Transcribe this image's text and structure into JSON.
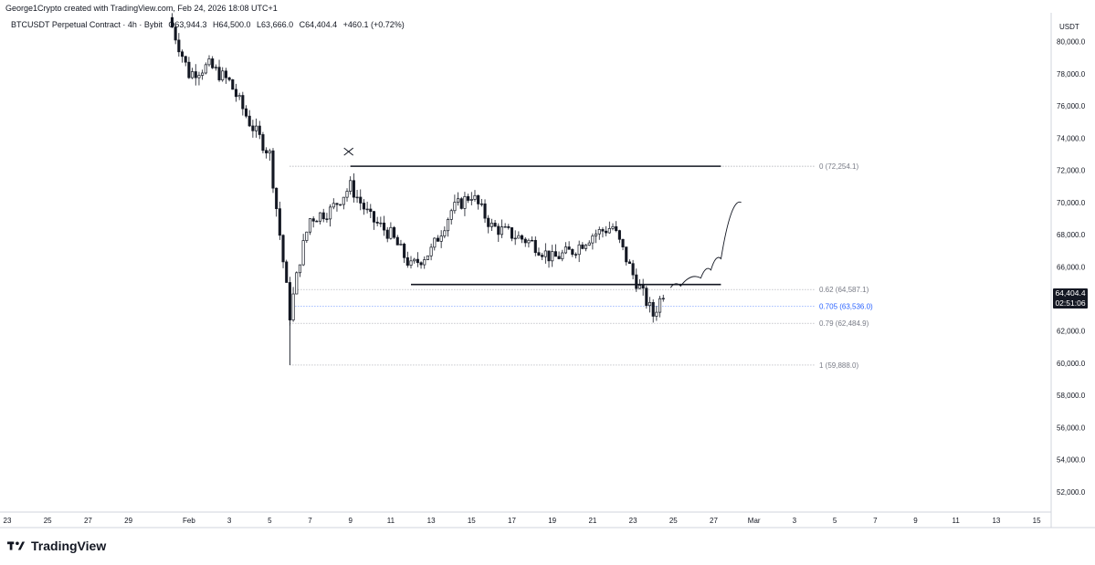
{
  "header": {
    "creator_text": "George1Crypto created with TradingView.com, Feb 24, 2026 18:08 UTC+1"
  },
  "symbol": {
    "name": "BTCUSDT Perpetual Contract · 4h · Bybit",
    "open": "O63,944.3",
    "high": "H64,500.0",
    "low": "L63,666.0",
    "close": "C64,404.4",
    "change": "+460.1 (+0.72%)"
  },
  "price_tag": {
    "price": "64,404.4",
    "countdown": "02:51:06"
  },
  "footer": {
    "brand": "TradingView"
  },
  "colors": {
    "candle": "#131722",
    "grid": "#e0e3eb",
    "fib_062": "#787b86",
    "fib_0705": "#2962ff",
    "fib_079": "#787b86"
  },
  "chart_data": {
    "type": "candlestick",
    "y_axis_unit": "USDT",
    "ylim": [
      50800,
      81800
    ],
    "y_ticks": [
      "80,000.0",
      "78,000.0",
      "76,000.0",
      "74,000.0",
      "72,000.0",
      "70,000.0",
      "68,000.0",
      "66,000.0",
      "64,000.0",
      "62,000.0",
      "60,000.0",
      "58,000.0",
      "56,000.0",
      "54,000.0",
      "52,000.0"
    ],
    "y_tick_values": [
      80000,
      78000,
      76000,
      74000,
      72000,
      70000,
      68000,
      66000,
      64000,
      62000,
      60000,
      58000,
      56000,
      54000,
      52000
    ],
    "x_ticks": [
      "23",
      "25",
      "27",
      "29",
      "Feb",
      "3",
      "5",
      "7",
      "9",
      "11",
      "13",
      "15",
      "17",
      "19",
      "21",
      "23",
      "25",
      "27",
      "Mar",
      "3",
      "5",
      "7",
      "9",
      "11",
      "13",
      "15"
    ],
    "xlim_days": [
      "Jan 23",
      "Mar 15"
    ],
    "fib_levels": [
      {
        "label": "0 (72,254.1)",
        "value": 72254.1
      },
      {
        "label": "0.62 (64,587.1)",
        "value": 64587.1
      },
      {
        "label": "0.705 (63,536.0)",
        "value": 63536.0
      },
      {
        "label": "0.79 (62,484.9)",
        "value": 62484.9
      },
      {
        "label": "1 (59,888.0)",
        "value": 59888.0
      }
    ],
    "horizontal_lines": [
      {
        "from_date": "Feb 9",
        "to_date": "Feb 26",
        "value": 72254.1
      },
      {
        "from_date": "Feb 12",
        "to_date": "Feb 26",
        "value": 64900
      }
    ],
    "candles_close_path": [
      {
        "date": "Jan 31",
        "value": 81500
      },
      {
        "date": "Feb 1",
        "value": 78000
      },
      {
        "date": "Feb 2",
        "value": 78500
      },
      {
        "date": "Feb 3",
        "value": 77500
      },
      {
        "date": "Feb 4",
        "value": 75000
      },
      {
        "date": "Feb 5",
        "value": 73000
      },
      {
        "date": "Feb 5.5",
        "value": 68000
      },
      {
        "date": "Feb 6",
        "value": 63000
      },
      {
        "date": "Feb 6.5",
        "value": 66500
      },
      {
        "date": "Feb 7",
        "value": 69000
      },
      {
        "date": "Feb 8",
        "value": 69500
      },
      {
        "date": "Feb 9",
        "value": 71000
      },
      {
        "date": "Feb 10",
        "value": 69000
      },
      {
        "date": "Feb 11",
        "value": 68000
      },
      {
        "date": "Feb 12",
        "value": 66000
      },
      {
        "date": "Feb 13",
        "value": 67000
      },
      {
        "date": "Feb 14",
        "value": 69500
      },
      {
        "date": "Feb 15",
        "value": 70500
      },
      {
        "date": "Feb 16",
        "value": 68500
      },
      {
        "date": "Feb 17",
        "value": 68000
      },
      {
        "date": "Feb 18",
        "value": 67500
      },
      {
        "date": "Feb 19",
        "value": 66500
      },
      {
        "date": "Feb 20",
        "value": 67000
      },
      {
        "date": "Feb 21",
        "value": 68000
      },
      {
        "date": "Feb 22",
        "value": 68500
      },
      {
        "date": "Feb 23",
        "value": 65500
      },
      {
        "date": "Feb 24",
        "value": 63000
      },
      {
        "date": "Feb 24.5",
        "value": 64404.4
      }
    ],
    "projection_path": [
      {
        "date": "Feb 25",
        "value": 64800
      },
      {
        "date": "Feb 26",
        "value": 65300
      },
      {
        "date": "Feb 26.5",
        "value": 65800
      },
      {
        "date": "Feb 27",
        "value": 66500
      },
      {
        "date": "Feb 28",
        "value": 70000
      }
    ]
  }
}
